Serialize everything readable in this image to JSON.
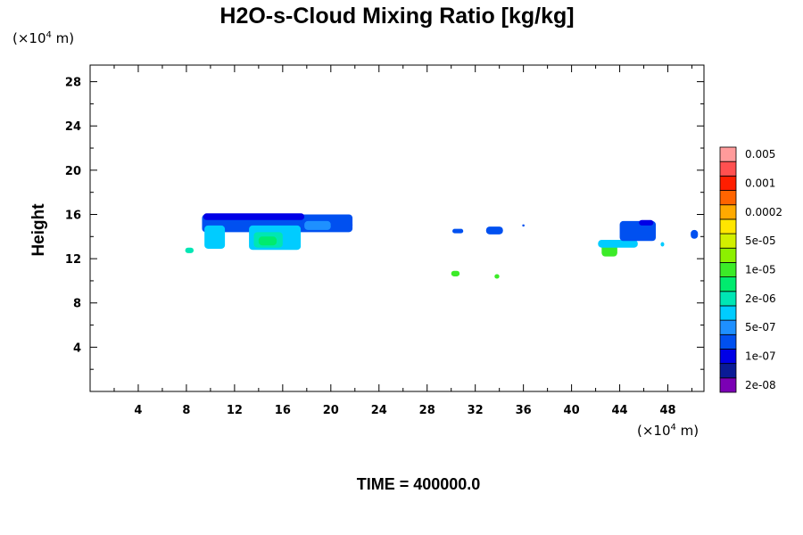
{
  "chart_data": {
    "type": "heatmap",
    "title": "H2O-s-Cloud Mixing Ratio [kg/kg]",
    "xlabel": "",
    "ylabel": "Height",
    "x_unit": "(×10⁴ m)",
    "y_unit": "(×10⁴ m)",
    "x_unit_parts": {
      "prefix": "(×10",
      "exp": "4",
      "suffix": " m)"
    },
    "y_unit_parts": {
      "prefix": "(×10",
      "exp": "4",
      "suffix": " m)"
    },
    "xlim": [
      0,
      51
    ],
    "ylim": [
      0,
      29.5
    ],
    "x_ticks": [
      4,
      8,
      12,
      16,
      20,
      24,
      28,
      32,
      36,
      40,
      44,
      48
    ],
    "x_tick_labels": [
      "4",
      "8",
      "12",
      "16",
      "20",
      "24",
      "28",
      "32",
      "36",
      "40",
      "44",
      "48"
    ],
    "y_ticks": [
      4,
      8,
      12,
      16,
      20,
      24,
      28
    ],
    "y_tick_labels": [
      "4",
      "8",
      "12",
      "16",
      "20",
      "24",
      "28"
    ],
    "grid": false,
    "legend_placement": "right",
    "colorbar": {
      "colors": [
        "#7b00b4",
        "#0a1b96",
        "#0000e6",
        "#0050f0",
        "#1e90ff",
        "#00ccff",
        "#00e6b4",
        "#00eb6e",
        "#3ceb28",
        "#8cf000",
        "#d2f000",
        "#ffe600",
        "#ffaa00",
        "#ff6400",
        "#ff1e00",
        "#ff5050",
        "#ff9b9b"
      ],
      "labels": [
        "2e-08",
        "1e-07",
        "5e-07",
        "2e-06",
        "1e-05",
        "5e-05",
        "0.0002",
        "0.001",
        "0.005"
      ]
    },
    "cloud_regions": [
      {
        "x_range": [
          9.3,
          21.8
        ],
        "y_range": [
          14.4,
          16.0
        ],
        "color": "#0050f0"
      },
      {
        "x_range": [
          9.4,
          17.8
        ],
        "y_range": [
          15.5,
          16.1
        ],
        "color": "#0000e6"
      },
      {
        "x_range": [
          9.5,
          11.2
        ],
        "y_range": [
          12.9,
          15.0
        ],
        "color": "#00ccff"
      },
      {
        "x_range": [
          13.2,
          17.5
        ],
        "y_range": [
          12.8,
          15.0
        ],
        "color": "#00ccff"
      },
      {
        "x_range": [
          13.6,
          16.0
        ],
        "y_range": [
          13.0,
          14.4
        ],
        "color": "#00e6b4"
      },
      {
        "x_range": [
          14.0,
          15.5
        ],
        "y_range": [
          13.2,
          14.0
        ],
        "color": "#00eb6e"
      },
      {
        "x_range": [
          7.9,
          8.6
        ],
        "y_range": [
          12.5,
          13.0
        ],
        "color": "#00e6b4"
      },
      {
        "x_range": [
          17.8,
          20.0
        ],
        "y_range": [
          14.6,
          15.4
        ],
        "color": "#1e90ff"
      },
      {
        "x_range": [
          20.0,
          21.8
        ],
        "y_range": [
          14.7,
          15.4
        ],
        "color": "#0050f0"
      },
      {
        "x_range": [
          30.1,
          31.0
        ],
        "y_range": [
          14.3,
          14.7
        ],
        "color": "#0050f0"
      },
      {
        "x_range": [
          32.9,
          34.3
        ],
        "y_range": [
          14.2,
          14.9
        ],
        "color": "#0050f0"
      },
      {
        "x_range": [
          35.9,
          36.1
        ],
        "y_range": [
          14.9,
          15.1
        ],
        "color": "#0050f0"
      },
      {
        "x_range": [
          30.0,
          30.7
        ],
        "y_range": [
          10.4,
          10.9
        ],
        "color": "#3ceb28"
      },
      {
        "x_range": [
          33.6,
          34.0
        ],
        "y_range": [
          10.2,
          10.6
        ],
        "color": "#3ceb28"
      },
      {
        "x_range": [
          42.5,
          43.8
        ],
        "y_range": [
          12.2,
          13.4
        ],
        "color": "#3ceb28"
      },
      {
        "x_range": [
          42.2,
          45.5
        ],
        "y_range": [
          13.0,
          13.7
        ],
        "color": "#00ccff"
      },
      {
        "x_range": [
          44.0,
          47.0
        ],
        "y_range": [
          13.6,
          15.4
        ],
        "color": "#0050f0"
      },
      {
        "x_range": [
          45.6,
          46.8
        ],
        "y_range": [
          15.0,
          15.5
        ],
        "color": "#0000e6"
      },
      {
        "x_range": [
          47.4,
          47.7
        ],
        "y_range": [
          13.1,
          13.5
        ],
        "color": "#00ccff"
      },
      {
        "x_range": [
          49.9,
          50.5
        ],
        "y_range": [
          13.8,
          14.6
        ],
        "color": "#0050f0"
      }
    ]
  },
  "time_label": "TIME = 400000.0"
}
